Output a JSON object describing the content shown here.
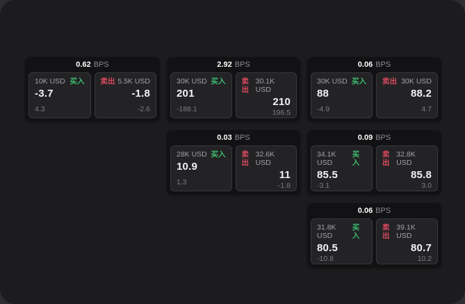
{
  "labels": {
    "bps": "BPS",
    "buy": "买入",
    "sell": "卖出"
  },
  "colors": {
    "buy_accent": "#3dbb70",
    "sell_accent": "#d9495f",
    "window_bg": "#1c1c1e",
    "card_bg": "#121214",
    "panel_bg": "#232325"
  },
  "cards": [
    {
      "bps": "0.62",
      "buy": {
        "size": "10K USD",
        "price": "-3.7",
        "delta": "4.3"
      },
      "sell": {
        "size": "5.5K USD",
        "price": "-1.8",
        "delta": "-2.6"
      }
    },
    {
      "bps": "2.92",
      "buy": {
        "size": "30K USD",
        "price": "201",
        "delta": "-188.1"
      },
      "sell": {
        "size": "30.1K USD",
        "price": "210",
        "delta": "196.5"
      }
    },
    {
      "bps": "0.06",
      "buy": {
        "size": "30K USD",
        "price": "88",
        "delta": "-4.9"
      },
      "sell": {
        "size": "30K USD",
        "price": "88.2",
        "delta": "4.7"
      }
    },
    {
      "bps": "0.03",
      "buy": {
        "size": "28K USD",
        "price": "10.9",
        "delta": "1.3"
      },
      "sell": {
        "size": "32.6K USD",
        "price": "11",
        "delta": "-1.8"
      }
    },
    {
      "bps": "0.09",
      "buy": {
        "size": "34.1K USD",
        "price": "85.5",
        "delta": "-3.1"
      },
      "sell": {
        "size": "32.8K USD",
        "price": "85.8",
        "delta": "3.0"
      }
    },
    {
      "bps": "0.06",
      "buy": {
        "size": "31.8K USD",
        "price": "80.5",
        "delta": "-10.8"
      },
      "sell": {
        "size": "39.1K USD",
        "price": "80.7",
        "delta": "10.2"
      }
    }
  ]
}
